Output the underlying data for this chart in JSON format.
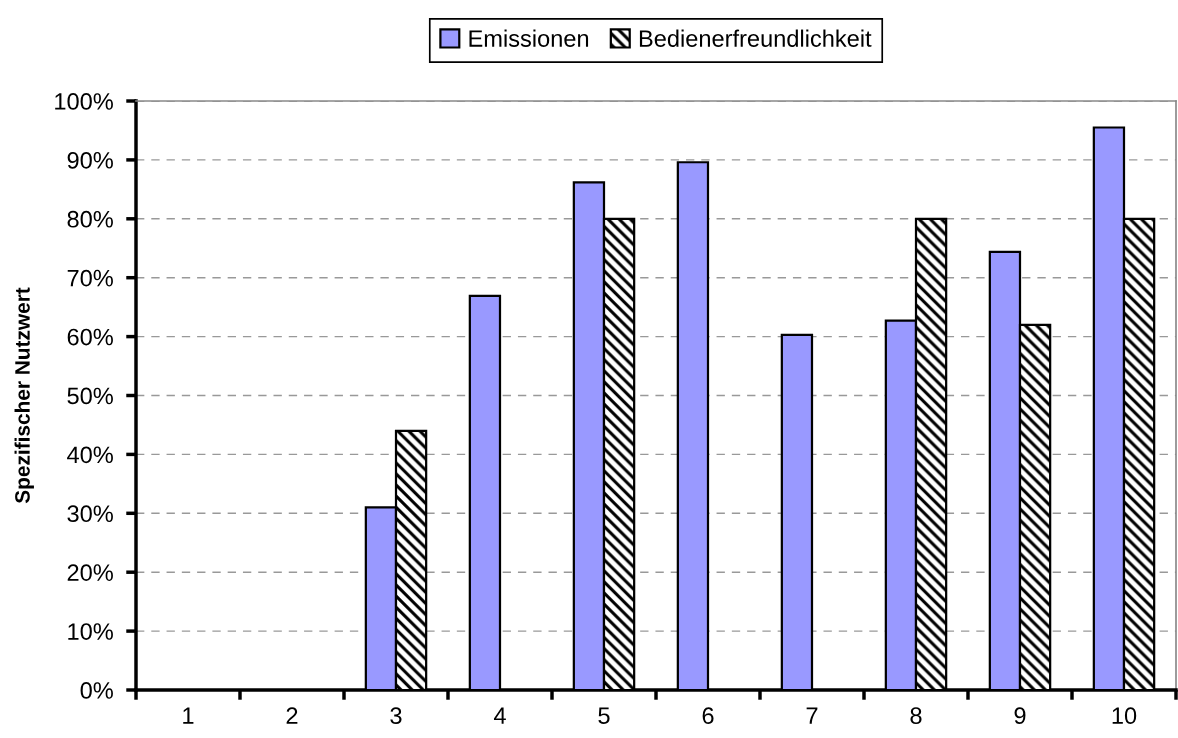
{
  "chart_data": {
    "type": "bar",
    "ylabel": "Spezifischer Nutzwert",
    "categories": [
      "1",
      "2",
      "3",
      "4",
      "5",
      "6",
      "7",
      "8",
      "9",
      "10"
    ],
    "series": [
      {
        "name": "Emissionen",
        "color": "#9999ff",
        "values": [
          null,
          null,
          31.0,
          66.9,
          86.2,
          89.6,
          60.3,
          62.7,
          74.4,
          95.5
        ]
      },
      {
        "name": "Bedienerfreundlichkeit",
        "color": "#000000",
        "values": [
          null,
          null,
          44.0,
          null,
          80.0,
          null,
          null,
          80.0,
          62.0,
          80.0
        ]
      }
    ],
    "ylim": [
      0,
      100
    ],
    "yticks": [
      {
        "value": 0,
        "label": "0%"
      },
      {
        "value": 10,
        "label": "10%"
      },
      {
        "value": 20,
        "label": "20%"
      },
      {
        "value": 30,
        "label": "30%"
      },
      {
        "value": 40,
        "label": "40%"
      },
      {
        "value": 50,
        "label": "50%"
      },
      {
        "value": 60,
        "label": "60%"
      },
      {
        "value": 70,
        "label": "70%"
      },
      {
        "value": 80,
        "label": "80%"
      },
      {
        "value": 90,
        "label": "90%"
      },
      {
        "value": 100,
        "label": "100%"
      }
    ],
    "grid": "y",
    "legend": "top"
  }
}
